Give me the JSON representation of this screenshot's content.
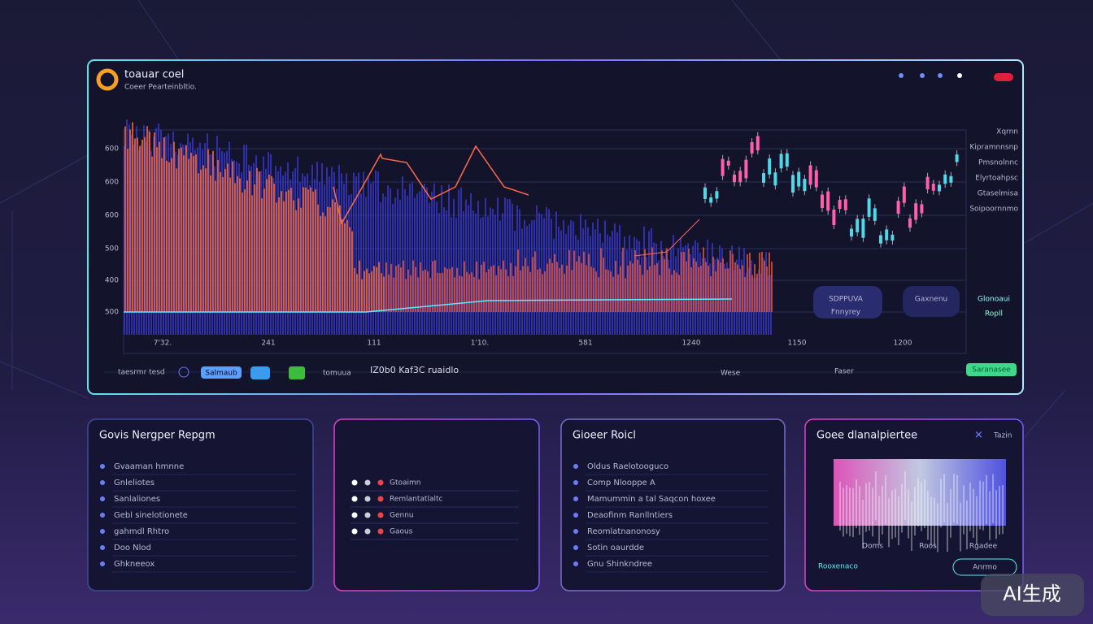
{
  "header": {
    "title": "toauar coel",
    "subtitle": "Coeer Pearteinbltio."
  },
  "main_chart": {
    "y_labels": [
      "600",
      "600",
      "600",
      "500",
      "400",
      "500"
    ],
    "x_labels": [
      "7'32.",
      "241",
      "111",
      "1'10.",
      "581",
      "1240",
      "1150",
      "1200"
    ],
    "right_labels": [
      "Xqrnn",
      "Kipramnnsnp",
      "Pmsnolnnc",
      "Elyrtoahpsc",
      "Gtaselmisa",
      "Soipoornnmo"
    ],
    "badges": [
      "SDPPUVA",
      "Fnnyrey",
      "Gaxnenu",
      "Glonoaui",
      "Ropll"
    ]
  },
  "toolbar": {
    "left": "taesrmr tesd",
    "button": "Salmaub",
    "toggle": "tomuua",
    "status": "IZ0b0 Kaf3C ruaidlo",
    "mid": "Wese",
    "mid2": "Faser",
    "action": "Saranasee"
  },
  "panels": [
    {
      "title": "Govis Nergper Repgm",
      "items": [
        "Gvaaman hmnne",
        "Gnleliotes",
        "Sanlaliones",
        "Gebl sinelotionete",
        "gahmdl Rhtro",
        "Doo Nlod",
        "Ghkneeox"
      ]
    },
    {
      "items": [
        "Gtoaimn",
        "Remlantatlaltc",
        "Gennu",
        "Gaous"
      ]
    },
    {
      "title": "Gioeer Roicl",
      "items": [
        "Oldus Raelotooguco",
        "Comp Nlooppe A",
        "Mamummin a tal Saqcon hoxee",
        "Deaofinm Ranllntiers",
        "Reomlatnanonosy",
        "Sotin oaurdde",
        "Gnu Shinkndree"
      ]
    },
    {
      "title": "Goee dlanalpiertee",
      "close": "✕",
      "tab": "Tazin",
      "labels": [
        "Doms",
        "Roos",
        "Rgadee"
      ],
      "footer": "Rooxenaco",
      "button": "Anrmo"
    }
  ],
  "badge": "AI生成"
}
